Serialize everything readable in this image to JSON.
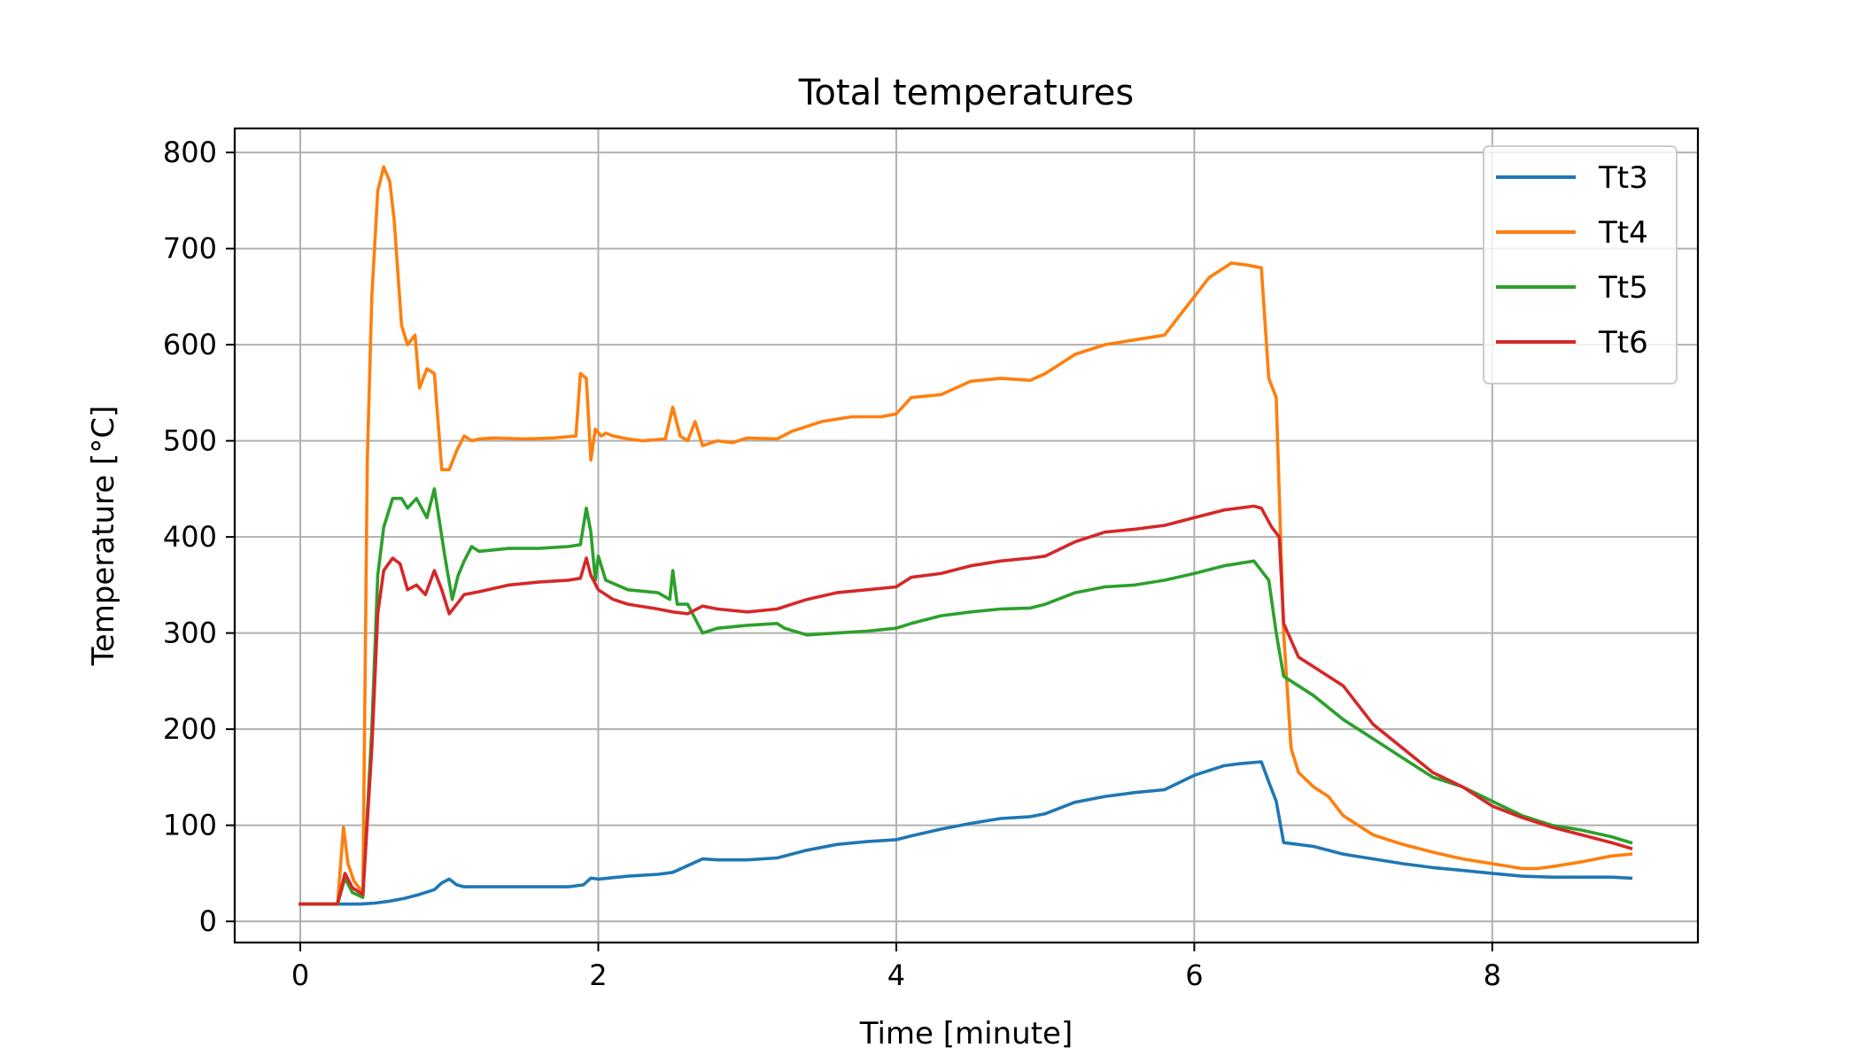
{
  "chart_data": {
    "type": "line",
    "title": "Total temperatures",
    "xlabel": "Time [minute]",
    "ylabel": "Temperature [°C]",
    "xlim": [
      -0.44,
      9.38
    ],
    "ylim": [
      -22,
      825
    ],
    "xticks": [
      0,
      2,
      4,
      6,
      8
    ],
    "yticks": [
      0,
      100,
      200,
      300,
      400,
      500,
      600,
      700,
      800
    ],
    "grid": true,
    "legend_position": "top-right",
    "series": [
      {
        "name": "Tt3",
        "color": "#1f77b4",
        "x": [
          0,
          0.2,
          0.3,
          0.4,
          0.5,
          0.6,
          0.7,
          0.8,
          0.9,
          0.95,
          1.0,
          1.05,
          1.1,
          1.2,
          1.4,
          1.6,
          1.8,
          1.9,
          1.95,
          2.0,
          2.2,
          2.4,
          2.5,
          2.6,
          2.7,
          2.8,
          3.0,
          3.2,
          3.4,
          3.6,
          3.8,
          4.0,
          4.1,
          4.3,
          4.5,
          4.7,
          4.9,
          5.0,
          5.2,
          5.4,
          5.6,
          5.8,
          6.0,
          6.2,
          6.3,
          6.45,
          6.5,
          6.55,
          6.6,
          6.8,
          7.0,
          7.2,
          7.4,
          7.6,
          7.8,
          8.0,
          8.2,
          8.4,
          8.6,
          8.8,
          8.93
        ],
        "y": [
          18,
          18,
          18,
          18,
          19,
          21,
          24,
          28,
          33,
          40,
          44,
          38,
          36,
          36,
          36,
          36,
          36,
          38,
          45,
          44,
          47,
          49,
          51,
          58,
          65,
          64,
          64,
          66,
          74,
          80,
          83,
          85,
          89,
          96,
          102,
          107,
          109,
          112,
          124,
          130,
          134,
          137,
          152,
          162,
          164,
          166,
          145,
          125,
          82,
          78,
          70,
          65,
          60,
          56,
          53,
          50,
          47,
          46,
          46,
          46,
          45
        ]
      },
      {
        "name": "Tt4",
        "color": "#ff7f0e",
        "x": [
          0,
          0.25,
          0.29,
          0.32,
          0.36,
          0.42,
          0.45,
          0.48,
          0.52,
          0.56,
          0.6,
          0.63,
          0.68,
          0.72,
          0.77,
          0.8,
          0.85,
          0.9,
          0.95,
          1.0,
          1.05,
          1.1,
          1.15,
          1.2,
          1.3,
          1.5,
          1.7,
          1.85,
          1.88,
          1.92,
          1.95,
          1.98,
          2.02,
          2.05,
          2.1,
          2.2,
          2.3,
          2.45,
          2.5,
          2.55,
          2.6,
          2.65,
          2.7,
          2.8,
          2.9,
          3.0,
          3.2,
          3.3,
          3.5,
          3.7,
          3.9,
          4.0,
          4.1,
          4.3,
          4.5,
          4.7,
          4.9,
          5.0,
          5.2,
          5.4,
          5.6,
          5.8,
          6.0,
          6.1,
          6.25,
          6.35,
          6.45,
          6.5,
          6.55,
          6.6,
          6.65,
          6.7,
          6.8,
          6.9,
          7.0,
          7.2,
          7.4,
          7.6,
          7.8,
          8.0,
          8.2,
          8.3,
          8.4,
          8.6,
          8.8,
          8.93
        ],
        "y": [
          18,
          18,
          98,
          60,
          42,
          30,
          480,
          650,
          760,
          785,
          770,
          730,
          620,
          600,
          610,
          555,
          575,
          570,
          470,
          470,
          490,
          505,
          500,
          502,
          503,
          502,
          503,
          505,
          570,
          565,
          480,
          512,
          505,
          508,
          505,
          502,
          500,
          502,
          535,
          505,
          500,
          520,
          495,
          500,
          498,
          503,
          502,
          510,
          520,
          525,
          525,
          528,
          545,
          548,
          562,
          565,
          563,
          570,
          590,
          600,
          605,
          610,
          650,
          670,
          685,
          683,
          680,
          565,
          545,
          300,
          180,
          155,
          140,
          130,
          110,
          90,
          80,
          72,
          65,
          60,
          55,
          55,
          57,
          62,
          68,
          70
        ]
      },
      {
        "name": "Tt5",
        "color": "#2ca02c",
        "x": [
          0,
          0.25,
          0.3,
          0.35,
          0.42,
          0.48,
          0.52,
          0.56,
          0.62,
          0.68,
          0.72,
          0.78,
          0.85,
          0.9,
          0.93,
          0.97,
          1.02,
          1.06,
          1.1,
          1.15,
          1.2,
          1.4,
          1.6,
          1.8,
          1.88,
          1.92,
          1.95,
          1.98,
          2.0,
          2.05,
          2.2,
          2.4,
          2.48,
          2.5,
          2.53,
          2.6,
          2.7,
          2.8,
          3.0,
          3.2,
          3.25,
          3.4,
          3.6,
          3.8,
          4.0,
          4.1,
          4.3,
          4.5,
          4.7,
          4.9,
          5.0,
          5.2,
          5.4,
          5.6,
          5.8,
          6.0,
          6.2,
          6.4,
          6.5,
          6.55,
          6.6,
          6.7,
          6.8,
          7.0,
          7.2,
          7.4,
          7.6,
          7.8,
          8.0,
          8.2,
          8.4,
          8.6,
          8.8,
          8.93
        ],
        "y": [
          18,
          18,
          45,
          30,
          25,
          200,
          360,
          410,
          440,
          440,
          430,
          440,
          420,
          450,
          420,
          380,
          335,
          360,
          375,
          390,
          385,
          388,
          388,
          390,
          392,
          430,
          405,
          355,
          380,
          355,
          345,
          342,
          335,
          365,
          330,
          330,
          300,
          305,
          308,
          310,
          305,
          298,
          300,
          302,
          305,
          310,
          318,
          322,
          325,
          326,
          330,
          342,
          348,
          350,
          355,
          362,
          370,
          375,
          355,
          300,
          255,
          245,
          235,
          210,
          190,
          170,
          150,
          140,
          125,
          110,
          100,
          95,
          88,
          82
        ]
      },
      {
        "name": "Tt6",
        "color": "#d62728",
        "x": [
          0,
          0.25,
          0.3,
          0.35,
          0.42,
          0.48,
          0.52,
          0.56,
          0.62,
          0.67,
          0.72,
          0.78,
          0.84,
          0.9,
          0.95,
          1.0,
          1.05,
          1.1,
          1.2,
          1.4,
          1.6,
          1.8,
          1.88,
          1.92,
          1.95,
          2.0,
          2.1,
          2.2,
          2.4,
          2.5,
          2.6,
          2.7,
          2.8,
          3.0,
          3.2,
          3.4,
          3.6,
          3.8,
          4.0,
          4.1,
          4.3,
          4.5,
          4.7,
          4.9,
          5.0,
          5.2,
          5.4,
          5.6,
          5.8,
          6.0,
          6.2,
          6.4,
          6.45,
          6.52,
          6.57,
          6.6,
          6.7,
          6.8,
          7.0,
          7.2,
          7.4,
          7.6,
          7.8,
          8.0,
          8.2,
          8.4,
          8.6,
          8.8,
          8.93
        ],
        "y": [
          18,
          18,
          50,
          35,
          28,
          180,
          320,
          365,
          378,
          372,
          345,
          350,
          340,
          365,
          345,
          320,
          330,
          340,
          343,
          350,
          353,
          355,
          357,
          378,
          360,
          345,
          335,
          330,
          325,
          322,
          320,
          328,
          325,
          322,
          325,
          335,
          342,
          345,
          348,
          358,
          362,
          370,
          375,
          378,
          380,
          395,
          405,
          408,
          412,
          420,
          428,
          432,
          430,
          410,
          400,
          310,
          275,
          265,
          245,
          205,
          180,
          155,
          140,
          120,
          108,
          98,
          90,
          82,
          76
        ]
      }
    ]
  }
}
